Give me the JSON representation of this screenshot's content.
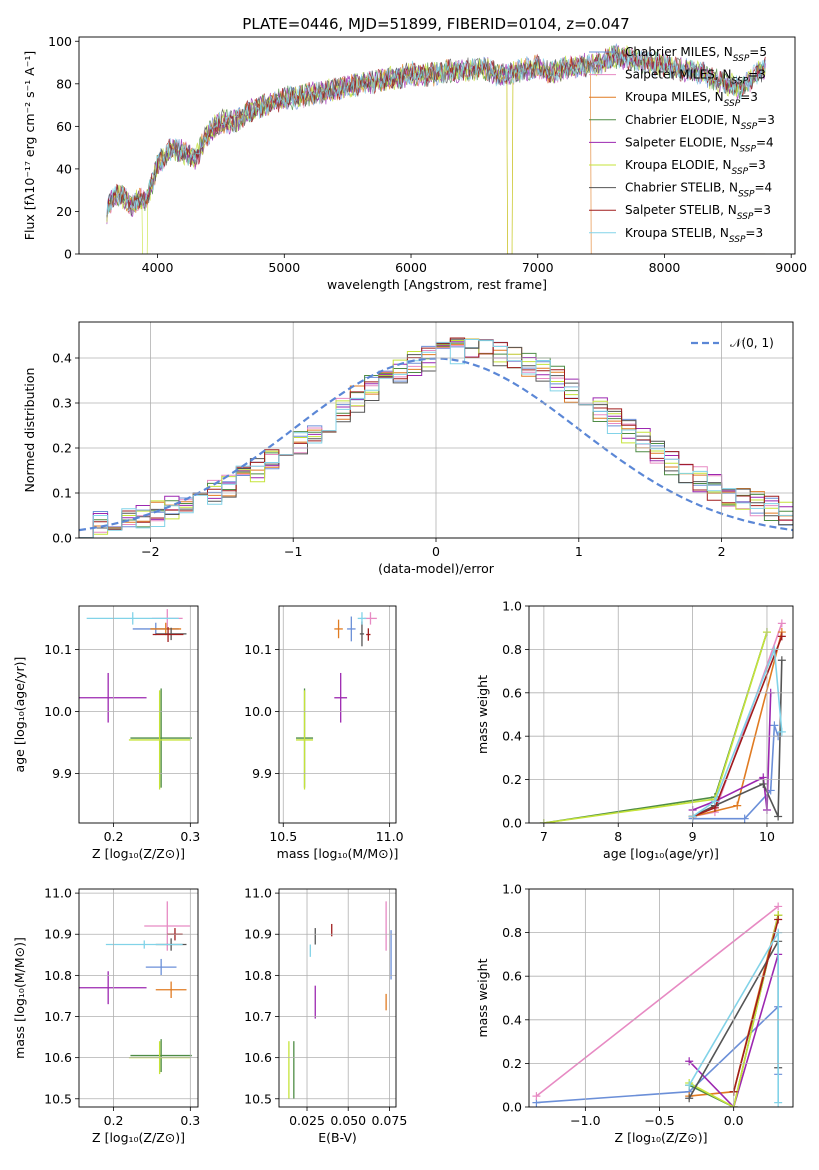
{
  "title": "PLATE=0446, MJD=51899, FIBERID=0104, z=0.047",
  "colors": {
    "Chabrier MILES": "#6b8fd8",
    "Salpeter MILES": "#e78ac3",
    "Kroupa MILES": "#e07b22",
    "Chabrier ELODIE": "#4e8c45",
    "Salpeter ELODIE": "#9c27b0",
    "Kroupa ELODIE": "#c5e33a",
    "Chabrier STELIB": "#555555",
    "Salpeter STELIB": "#a01d1d",
    "Kroupa STELIB": "#82d3e8",
    "gauss": "#5b87d6"
  },
  "chart_data": [
    {
      "type": "line",
      "panel": "spectrum",
      "xlabel": "wavelength [Angstrom, rest frame]",
      "ylabel": "Flux [fλ10⁻¹⁷ erg cm⁻² s⁻¹ A⁻¹]",
      "xlim": [
        3380,
        9030
      ],
      "ylim": [
        0,
        102
      ],
      "xticks": [
        "4000",
        "5000",
        "6000",
        "7000",
        "8000",
        "9000"
      ],
      "yticks": [
        "0",
        "20",
        "40",
        "60",
        "80",
        "100"
      ],
      "legend": [
        {
          "name": "Chabrier MILES",
          "label": "Chabrier MILES, N",
          "sub": "SSP",
          "tail": "=5"
        },
        {
          "name": "Salpeter MILES",
          "label": "Salpeter MILES, N",
          "sub": "SSP",
          "tail": "=3"
        },
        {
          "name": "Kroupa MILES",
          "label": "Kroupa MILES, N",
          "sub": "SSP",
          "tail": "=3"
        },
        {
          "name": "Chabrier ELODIE",
          "label": "Chabrier ELODIE, N",
          "sub": "SSP",
          "tail": "=3"
        },
        {
          "name": "Salpeter ELODIE",
          "label": "Salpeter ELODIE, N",
          "sub": "SSP",
          "tail": "=4"
        },
        {
          "name": "Kroupa ELODIE",
          "label": "Kroupa ELODIE, N",
          "sub": "SSP",
          "tail": "=3"
        },
        {
          "name": "Chabrier STELIB",
          "label": "Chabrier STELIB, N",
          "sub": "SSP",
          "tail": "=4"
        },
        {
          "name": "Salpeter STELIB",
          "label": "Salpeter STELIB, N",
          "sub": "SSP",
          "tail": "=3"
        },
        {
          "name": "Kroupa STELIB",
          "label": "Kroupa STELIB, N",
          "sub": "SSP",
          "tail": "=3"
        }
      ],
      "legend_position": "right",
      "continuum": {
        "x": [
          3600,
          3650,
          3700,
          3750,
          3800,
          3850,
          3900,
          3950,
          4000,
          4100,
          4200,
          4300,
          4400,
          4500,
          4600,
          4700,
          4800,
          4900,
          5000,
          5100,
          5200,
          5300,
          5400,
          5500,
          5600,
          5700,
          5800,
          5900,
          6000,
          6100,
          6200,
          6300,
          6400,
          6500,
          6600,
          6700,
          6800,
          6900,
          7000,
          7100,
          7200,
          7300,
          7400,
          7500,
          7600,
          7700,
          7800,
          7900,
          8000,
          8100,
          8200,
          8300,
          8400,
          8500,
          8600,
          8700,
          8800
        ],
        "y": [
          20,
          27,
          28,
          26,
          22,
          26,
          25,
          32,
          42,
          49,
          48,
          45,
          57,
          62,
          62,
          66,
          69,
          71,
          73,
          74,
          75,
          76,
          77,
          79,
          80,
          81,
          82,
          83,
          85,
          84,
          85,
          86,
          86,
          87,
          87,
          84,
          85,
          87,
          88,
          85,
          87,
          88,
          89,
          90,
          93,
          92,
          91,
          89,
          89,
          87,
          86,
          85,
          82,
          80,
          78,
          83,
          88
        ]
      }
    },
    {
      "type": "line",
      "panel": "residual-histogram",
      "xlabel": "(data-model)/error",
      "ylabel": "Normed distribution",
      "xlim": [
        -2.5,
        2.5
      ],
      "ylim": [
        0,
        0.48
      ],
      "xticks": [
        "−2",
        "−1",
        "0",
        "1",
        "2"
      ],
      "yticks": [
        "0.0",
        "0.1",
        "0.2",
        "0.3",
        "0.4"
      ],
      "legend": [
        "𝒩(0, 1)"
      ],
      "legend_position": "top-right",
      "series_shape": {
        "x": [
          -2.5,
          -2.3,
          -2.1,
          -1.9,
          -1.7,
          -1.5,
          -1.3,
          -1.1,
          -0.9,
          -0.7,
          -0.5,
          -0.3,
          -0.1,
          0.1,
          0.3,
          0.5,
          0.7,
          0.9,
          1.1,
          1.3,
          1.5,
          1.7,
          1.9,
          2.1,
          2.3,
          2.5
        ],
        "y": [
          0.02,
          0.03,
          0.05,
          0.07,
          0.09,
          0.13,
          0.17,
          0.22,
          0.26,
          0.3,
          0.33,
          0.36,
          0.38,
          0.39,
          0.38,
          0.36,
          0.33,
          0.3,
          0.26,
          0.22,
          0.17,
          0.13,
          0.09,
          0.07,
          0.05,
          0.04
        ]
      }
    },
    {
      "type": "scatter",
      "panel": "age-vs-Z",
      "xlabel": "Z [log₁₀(Z/Z⊙)]",
      "ylabel": "age  [log₁₀(age/yr)]",
      "xlim": [
        0.155,
        0.31
      ],
      "ylim": [
        9.82,
        10.17
      ],
      "xticks": [
        "0.2",
        "0.3"
      ],
      "yticks": [
        "9.9",
        "10.0",
        "10.1"
      ],
      "points": [
        {
          "s": "Chabrier MILES",
          "x": 0.255,
          "y": 10.133,
          "xerr": 0.03,
          "yerr": 0.01
        },
        {
          "s": "Salpeter MILES",
          "x": 0.27,
          "y": 10.15,
          "xerr": 0.02,
          "yerr": 0.015
        },
        {
          "s": "Kroupa MILES",
          "x": 0.268,
          "y": 10.133,
          "xerr": 0.02,
          "yerr": 0.01
        },
        {
          "s": "Chabrier ELODIE",
          "x": 0.262,
          "y": 9.957,
          "xerr": 0.04,
          "yerr": 0.08
        },
        {
          "s": "Salpeter ELODIE",
          "x": 0.193,
          "y": 10.022,
          "xerr": 0.05,
          "yerr": 0.04
        },
        {
          "s": "Kroupa ELODIE",
          "x": 0.26,
          "y": 9.954,
          "xerr": 0.04,
          "yerr": 0.08
        },
        {
          "s": "Chabrier STELIB",
          "x": 0.275,
          "y": 10.125,
          "xerr": 0.02,
          "yerr": 0.01
        },
        {
          "s": "Salpeter STELIB",
          "x": 0.271,
          "y": 10.124,
          "xerr": 0.02,
          "yerr": 0.012
        },
        {
          "s": "Kroupa STELIB",
          "x": 0.225,
          "y": 10.15,
          "xerr": 0.06,
          "yerr": 0.01
        }
      ]
    },
    {
      "type": "scatter",
      "panel": "age-vs-mass",
      "xlabel": "mass [log₁₀(M/M⊙)]",
      "ylabel": "",
      "xlim": [
        10.48,
        11.03
      ],
      "ylim": [
        9.82,
        10.17
      ],
      "xticks": [
        "10.5",
        "11.0"
      ],
      "yticks": [
        "9.9",
        "10.0",
        "10.1"
      ],
      "points": [
        {
          "s": "Chabrier MILES",
          "x": 10.82,
          "y": 10.133,
          "xerr": 0.02,
          "yerr": 0.02
        },
        {
          "s": "Salpeter MILES",
          "x": 10.91,
          "y": 10.15,
          "xerr": 0.03,
          "yerr": 0.01
        },
        {
          "s": "Kroupa MILES",
          "x": 10.76,
          "y": 10.133,
          "xerr": 0.02,
          "yerr": 0.015
        },
        {
          "s": "Chabrier ELODIE",
          "x": 10.6,
          "y": 9.957,
          "xerr": 0.04,
          "yerr": 0.08
        },
        {
          "s": "Salpeter ELODIE",
          "x": 10.77,
          "y": 10.022,
          "xerr": 0.03,
          "yerr": 0.04
        },
        {
          "s": "Kroupa ELODIE",
          "x": 10.6,
          "y": 9.954,
          "xerr": 0.04,
          "yerr": 0.08
        },
        {
          "s": "Chabrier STELIB",
          "x": 10.87,
          "y": 10.125,
          "xerr": 0.01,
          "yerr": 0.02
        },
        {
          "s": "Salpeter STELIB",
          "x": 10.9,
          "y": 10.124,
          "xerr": 0.01,
          "yerr": 0.01
        },
        {
          "s": "Kroupa STELIB",
          "x": 10.87,
          "y": 10.15,
          "xerr": 0.02,
          "yerr": 0.01
        }
      ]
    },
    {
      "type": "line",
      "panel": "mass-weight-vs-age",
      "xlabel": "age  [log₁₀(age/yr)]",
      "ylabel": "mass weight",
      "xlim": [
        6.8,
        10.35
      ],
      "ylim": [
        0,
        1.0
      ],
      "xticks": [
        "7",
        "8",
        "9",
        "10"
      ],
      "yticks": [
        "0.0",
        "0.2",
        "0.4",
        "0.6",
        "0.8",
        "1.0"
      ],
      "series": [
        {
          "name": "Chabrier MILES",
          "x": [
            9.0,
            9.7,
            10.05,
            10.1,
            10.15
          ],
          "y": [
            0.02,
            0.02,
            0.15,
            0.45,
            0.4
          ]
        },
        {
          "name": "Salpeter MILES",
          "x": [
            9.0,
            9.3,
            10.2
          ],
          "y": [
            0.03,
            0.05,
            0.92
          ]
        },
        {
          "name": "Kroupa MILES",
          "x": [
            9.0,
            9.6,
            10.2
          ],
          "y": [
            0.03,
            0.08,
            0.88
          ]
        },
        {
          "name": "Chabrier ELODIE",
          "x": [
            7.0,
            9.3,
            10.0
          ],
          "y": [
            0.0,
            0.12,
            0.88
          ]
        },
        {
          "name": "Salpeter ELODIE",
          "x": [
            9.0,
            9.3,
            9.95,
            10.0,
            10.05
          ],
          "y": [
            0.06,
            0.1,
            0.21,
            0.06,
            0.6
          ]
        },
        {
          "name": "Kroupa ELODIE",
          "x": [
            7.0,
            9.3,
            10.0
          ],
          "y": [
            0.0,
            0.11,
            0.88
          ]
        },
        {
          "name": "Chabrier STELIB",
          "x": [
            9.0,
            9.3,
            9.95,
            10.15,
            10.2
          ],
          "y": [
            0.03,
            0.08,
            0.18,
            0.03,
            0.75
          ]
        },
        {
          "name": "Salpeter STELIB",
          "x": [
            9.0,
            9.3,
            10.2
          ],
          "y": [
            0.03,
            0.07,
            0.86
          ]
        },
        {
          "name": "Kroupa STELIB",
          "x": [
            9.0,
            9.3,
            10.1,
            10.2
          ],
          "y": [
            0.03,
            0.1,
            0.8,
            0.42
          ]
        }
      ]
    },
    {
      "type": "scatter",
      "panel": "mass-vs-Z",
      "xlabel": "Z [log₁₀(Z/Z⊙)]",
      "ylabel": "mass [log₁₀(M/M⊙)]",
      "xlim": [
        0.155,
        0.31
      ],
      "ylim": [
        10.48,
        11.01
      ],
      "xticks": [
        "0.2",
        "0.3"
      ],
      "yticks": [
        "10.5",
        "10.6",
        "10.7",
        "10.8",
        "10.9",
        "11.0"
      ],
      "points": [
        {
          "s": "Chabrier MILES",
          "x": 0.262,
          "y": 10.82,
          "xerr": 0.02,
          "yerr": 0.02
        },
        {
          "s": "Salpeter MILES",
          "x": 0.27,
          "y": 10.92,
          "xerr": 0.03,
          "yerr": 0.06
        },
        {
          "s": "Kroupa MILES",
          "x": 0.275,
          "y": 10.765,
          "xerr": 0.02,
          "yerr": 0.02
        },
        {
          "s": "Chabrier ELODIE",
          "x": 0.262,
          "y": 10.605,
          "xerr": 0.04,
          "yerr": 0.04
        },
        {
          "s": "Salpeter ELODIE",
          "x": 0.193,
          "y": 10.77,
          "xerr": 0.05,
          "yerr": 0.04
        },
        {
          "s": "Kroupa ELODIE",
          "x": 0.26,
          "y": 10.6,
          "xerr": 0.04,
          "yerr": 0.04
        },
        {
          "s": "Chabrier STELIB",
          "x": 0.275,
          "y": 10.875,
          "xerr": 0.02,
          "yerr": 0.015
        },
        {
          "s": "Salpeter STELIB",
          "x": 0.28,
          "y": 10.9,
          "xerr": 0.01,
          "yerr": 0.015
        },
        {
          "s": "Kroupa STELIB",
          "x": 0.24,
          "y": 10.875,
          "xerr": 0.05,
          "yerr": 0.01
        }
      ]
    },
    {
      "type": "scatter",
      "panel": "mass-vs-EBV",
      "xlabel": "E(B-V)",
      "ylabel": "",
      "xlim": [
        0.008,
        0.079
      ],
      "ylim": [
        10.48,
        11.01
      ],
      "xticks": [
        "0.025",
        "0.050",
        "0.075"
      ],
      "yticks": [
        "10.5",
        "10.6",
        "10.7",
        "10.8",
        "10.9",
        "11.0"
      ],
      "points": [
        {
          "s": "Chabrier MILES",
          "x": 0.076,
          "y": 10.85,
          "yerr": 0.06
        },
        {
          "s": "Salpeter MILES",
          "x": 0.073,
          "y": 10.92,
          "yerr": 0.06
        },
        {
          "s": "Kroupa MILES",
          "x": 0.073,
          "y": 10.735,
          "yerr": 0.02
        },
        {
          "s": "Chabrier ELODIE",
          "x": 0.017,
          "y": 10.57,
          "yerr": 0.07
        },
        {
          "s": "Salpeter ELODIE",
          "x": 0.03,
          "y": 10.735,
          "yerr": 0.04
        },
        {
          "s": "Kroupa ELODIE",
          "x": 0.014,
          "y": 10.57,
          "yerr": 0.07
        },
        {
          "s": "Chabrier STELIB",
          "x": 0.03,
          "y": 10.895,
          "yerr": 0.02
        },
        {
          "s": "Salpeter STELIB",
          "x": 0.04,
          "y": 10.91,
          "yerr": 0.015
        },
        {
          "s": "Kroupa STELIB",
          "x": 0.027,
          "y": 10.86,
          "yerr": 0.015
        }
      ]
    },
    {
      "type": "line",
      "panel": "mass-weight-vs-Z",
      "xlabel": "Z [log₁₀(Z/Z⊙)]",
      "ylabel": "mass weight",
      "xlim": [
        -1.38,
        0.4
      ],
      "ylim": [
        0,
        1.0
      ],
      "xticks": [
        "−1.0",
        "−0.5",
        "0.0"
      ],
      "yticks": [
        "0.0",
        "0.2",
        "0.4",
        "0.6",
        "0.8",
        "1.0"
      ],
      "series": [
        {
          "name": "Chabrier MILES",
          "x": [
            -1.33,
            -0.3,
            0.3,
            0.3
          ],
          "y": [
            0.02,
            0.07,
            0.46,
            0.15
          ]
        },
        {
          "name": "Salpeter MILES",
          "x": [
            -1.33,
            0.3
          ],
          "y": [
            0.05,
            0.92
          ]
        },
        {
          "name": "Kroupa MILES",
          "x": [
            -0.3,
            0.0,
            0.3
          ],
          "y": [
            0.05,
            0.07,
            0.88
          ]
        },
        {
          "name": "Chabrier ELODIE",
          "x": [
            -0.3,
            0.0,
            0.3
          ],
          "y": [
            0.1,
            0.0,
            0.88
          ]
        },
        {
          "name": "Salpeter ELODIE",
          "x": [
            -0.3,
            0.0,
            0.3
          ],
          "y": [
            0.21,
            0.0,
            0.7
          ]
        },
        {
          "name": "Kroupa ELODIE",
          "x": [
            -0.3,
            0.0,
            0.3
          ],
          "y": [
            0.11,
            0.0,
            0.88
          ]
        },
        {
          "name": "Chabrier STELIB",
          "x": [
            -0.3,
            0.3,
            0.3
          ],
          "y": [
            0.04,
            0.76,
            0.18
          ]
        },
        {
          "name": "Salpeter STELIB",
          "x": [
            0.0,
            0.3
          ],
          "y": [
            0.07,
            0.86
          ]
        },
        {
          "name": "Kroupa STELIB",
          "x": [
            -0.3,
            0.3,
            0.3
          ],
          "y": [
            0.1,
            0.8,
            0.02
          ]
        }
      ]
    }
  ]
}
